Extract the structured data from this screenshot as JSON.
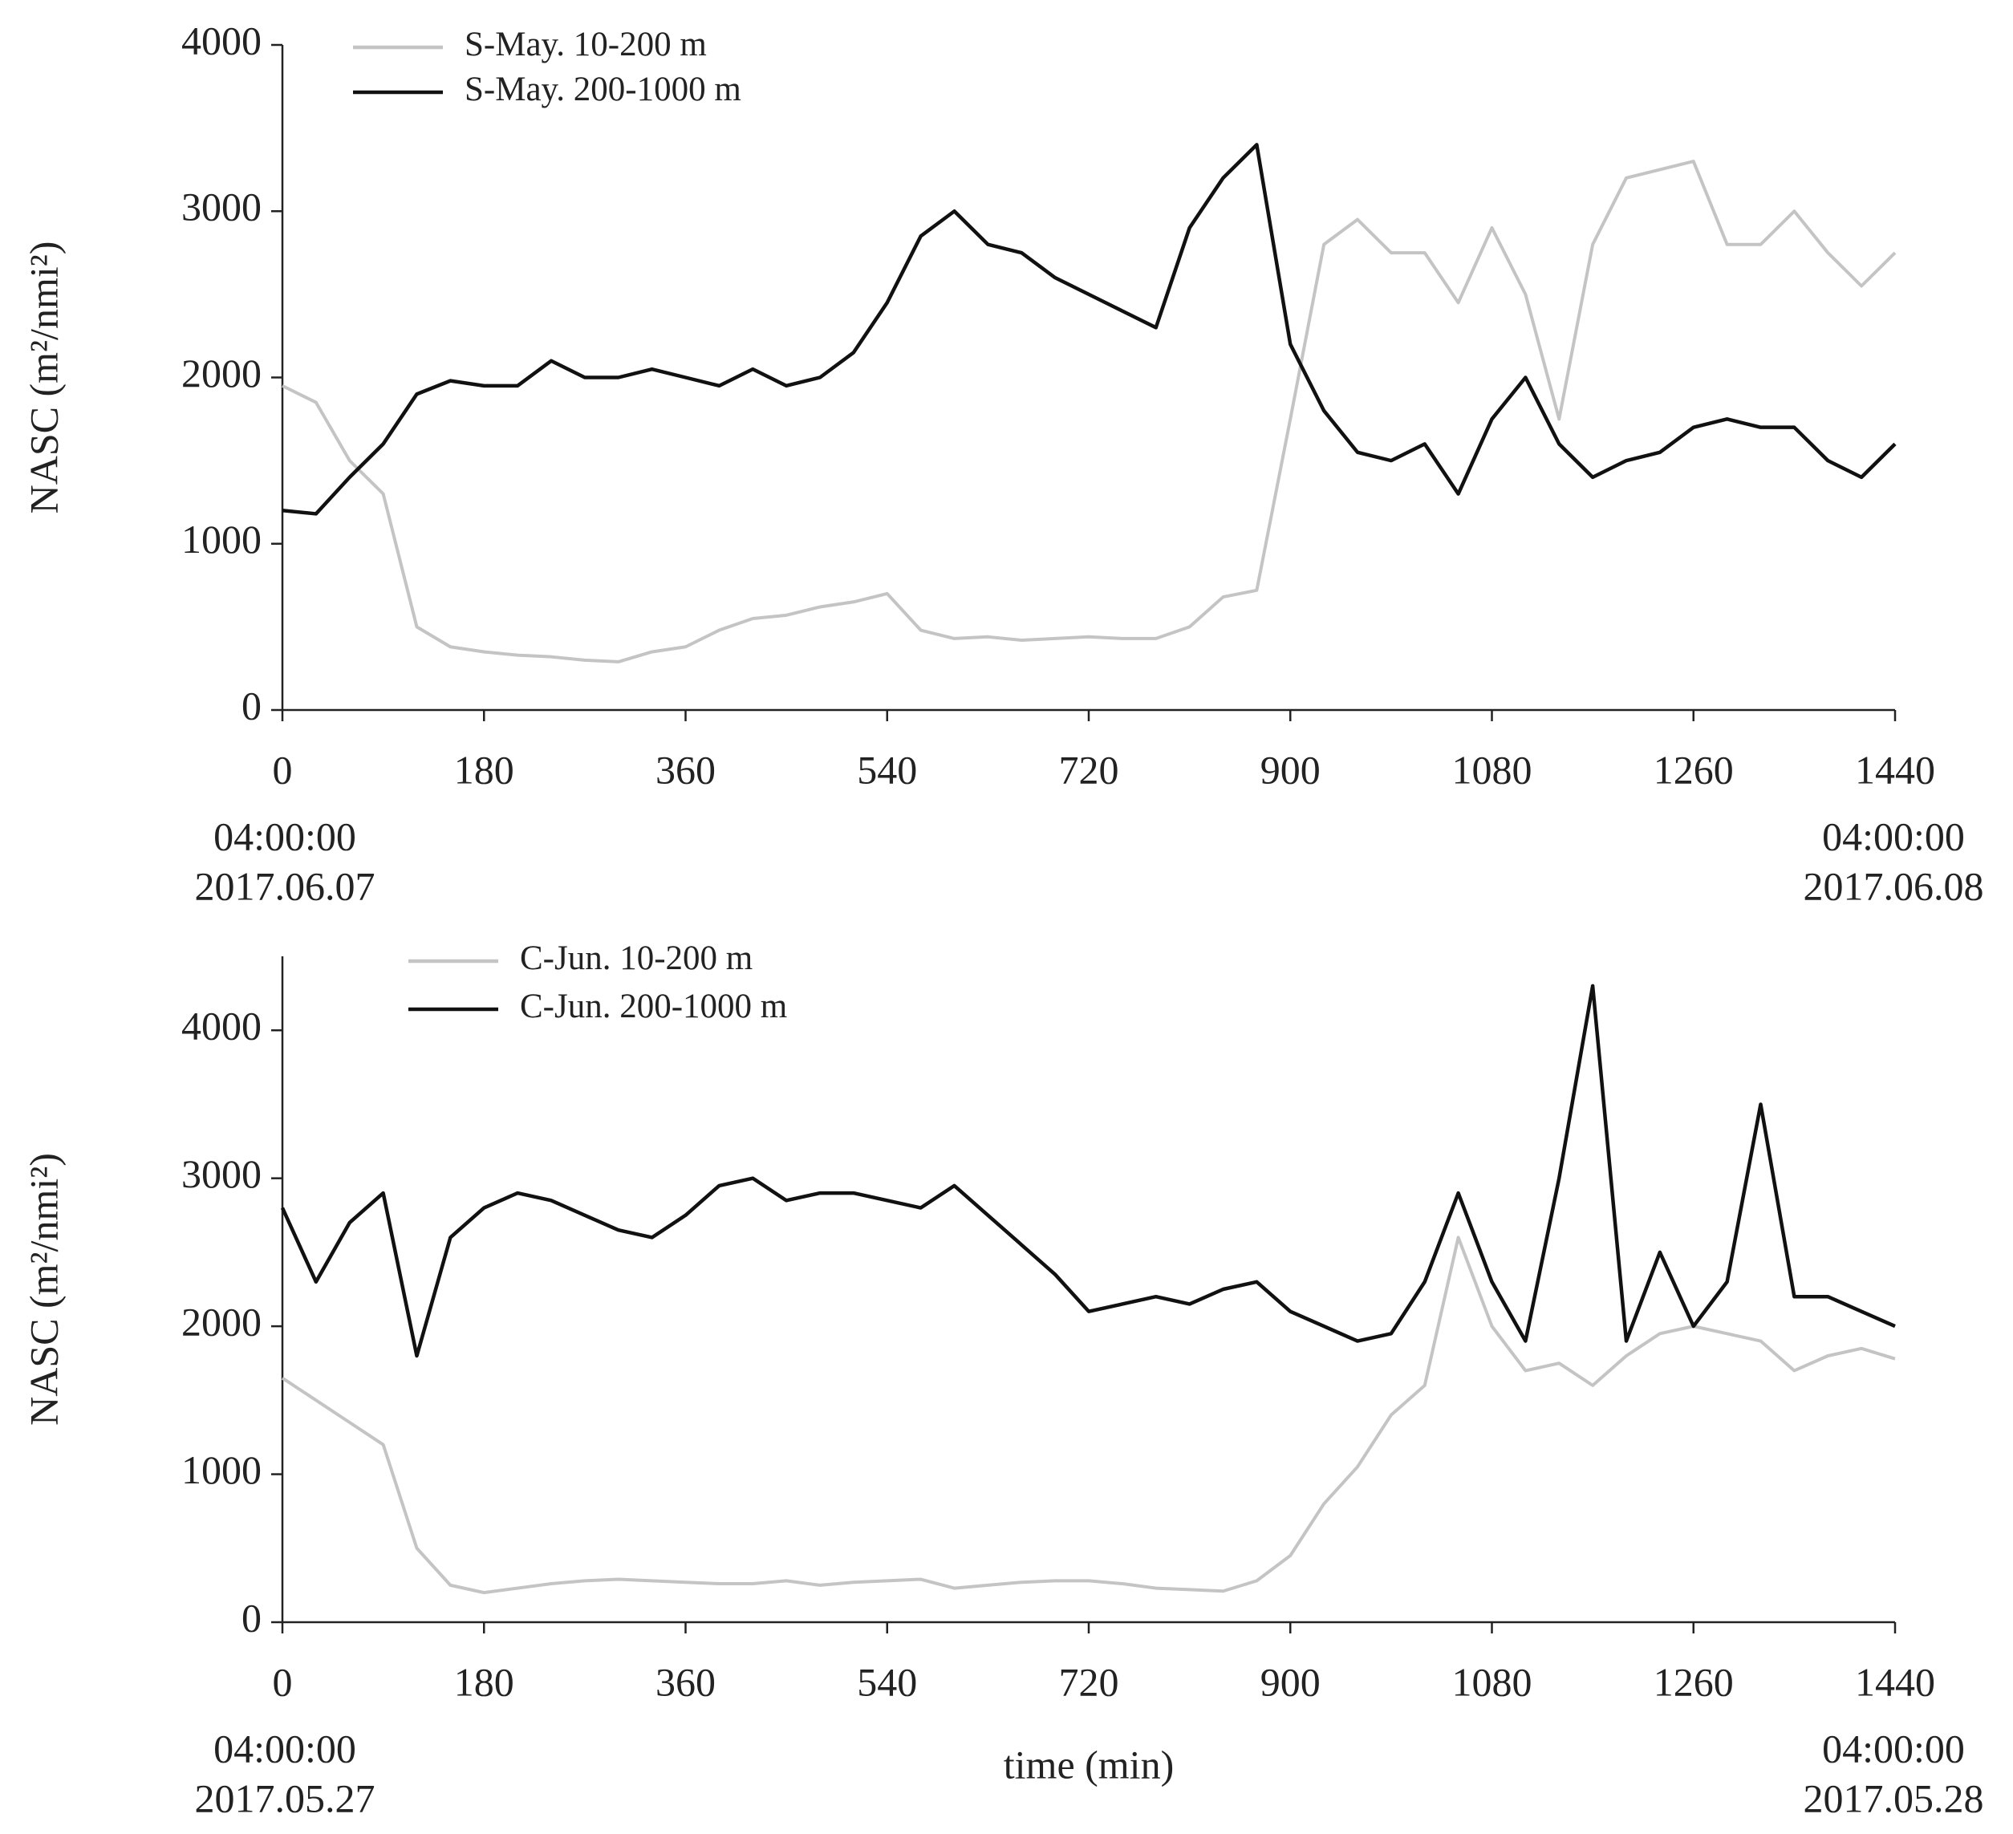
{
  "chart_data": [
    {
      "type": "line",
      "y_label": "NASC (m²/nmi²)",
      "x": [
        0,
        30,
        60,
        90,
        120,
        150,
        180,
        210,
        240,
        270,
        300,
        330,
        360,
        390,
        420,
        450,
        480,
        510,
        540,
        570,
        600,
        630,
        660,
        690,
        720,
        750,
        780,
        810,
        840,
        870,
        900,
        930,
        960,
        990,
        1020,
        1050,
        1080,
        1110,
        1140,
        1170,
        1200,
        1230,
        1260,
        1290,
        1320,
        1350,
        1380,
        1410,
        1440
      ],
      "xlim": [
        0,
        1440
      ],
      "xticks": [
        0,
        180,
        360,
        540,
        720,
        900,
        1080,
        1260,
        1440
      ],
      "ylim": [
        0,
        4000
      ],
      "yticks": [
        0,
        1000,
        2000,
        3000,
        4000
      ],
      "annotations": [
        [
          "04:00:00",
          "2017.06.07"
        ],
        [
          "04:00:00",
          "2017.06.08"
        ]
      ],
      "series": [
        {
          "name": "S-May. 10-200 m",
          "color": "#c4c4c4",
          "values": [
            1950,
            1850,
            1500,
            1300,
            500,
            380,
            350,
            330,
            320,
            300,
            290,
            350,
            380,
            480,
            550,
            570,
            620,
            650,
            700,
            480,
            430,
            440,
            420,
            430,
            440,
            430,
            430,
            500,
            680,
            720,
            1750,
            2800,
            2950,
            2750,
            2750,
            2450,
            2900,
            2500,
            1750,
            2800,
            3200,
            3250,
            3300,
            2800,
            2800,
            3000,
            2750,
            2550,
            2750
          ]
        },
        {
          "name": "S-May. 200-1000 m",
          "color": "#111111",
          "values": [
            1200,
            1180,
            1400,
            1600,
            1900,
            1980,
            1950,
            1950,
            2100,
            2000,
            2000,
            2050,
            2000,
            1950,
            2050,
            1950,
            2000,
            2150,
            2450,
            2850,
            3000,
            2800,
            2750,
            2600,
            2500,
            2400,
            2300,
            2900,
            3200,
            3400,
            2200,
            1800,
            1550,
            1500,
            1600,
            1300,
            1750,
            2000,
            1600,
            1400,
            1500,
            1550,
            1700,
            1750,
            1700,
            1700,
            1500,
            1400,
            1600
          ]
        }
      ]
    },
    {
      "type": "line",
      "y_label": "NASC (m²/nmi²)",
      "x_label": "time (min)",
      "x": [
        0,
        30,
        60,
        90,
        120,
        150,
        180,
        210,
        240,
        270,
        300,
        330,
        360,
        390,
        420,
        450,
        480,
        510,
        540,
        570,
        600,
        630,
        660,
        690,
        720,
        750,
        780,
        810,
        840,
        870,
        900,
        930,
        960,
        990,
        1020,
        1050,
        1080,
        1110,
        1140,
        1170,
        1200,
        1230,
        1260,
        1290,
        1320,
        1350,
        1380,
        1410,
        1440
      ],
      "xlim": [
        0,
        1440
      ],
      "xticks": [
        0,
        180,
        360,
        540,
        720,
        900,
        1080,
        1260,
        1440
      ],
      "ylim": [
        0,
        4500
      ],
      "yticks": [
        0,
        1000,
        2000,
        3000,
        4000
      ],
      "annotations": [
        [
          "04:00:00",
          "2017.05.27"
        ],
        [
          "04:00:00",
          "2017.05.28"
        ]
      ],
      "series": [
        {
          "name": "C-Jun. 10-200 m",
          "color": "#c4c4c4",
          "values": [
            1650,
            1500,
            1350,
            1200,
            500,
            250,
            200,
            230,
            260,
            280,
            290,
            280,
            270,
            260,
            260,
            280,
            250,
            270,
            280,
            290,
            230,
            250,
            270,
            280,
            280,
            260,
            230,
            220,
            210,
            280,
            450,
            800,
            1050,
            1400,
            1600,
            2600,
            2000,
            1700,
            1750,
            1600,
            1800,
            1950,
            2000,
            1950,
            1900,
            1700,
            1800,
            1850,
            1780
          ]
        },
        {
          "name": "C-Jun. 200-1000 m",
          "color": "#111111",
          "values": [
            2800,
            2300,
            2700,
            2900,
            1800,
            2600,
            2800,
            2900,
            2850,
            2750,
            2650,
            2600,
            2750,
            2950,
            3000,
            2850,
            2900,
            2900,
            2850,
            2800,
            2950,
            2750,
            2550,
            2350,
            2100,
            2150,
            2200,
            2150,
            2250,
            2300,
            2100,
            2000,
            1900,
            1950,
            2300,
            2900,
            2300,
            1900,
            3000,
            4300,
            1900,
            2500,
            2000,
            2300,
            3500,
            2200,
            2200,
            2100,
            2000
          ]
        }
      ]
    }
  ]
}
